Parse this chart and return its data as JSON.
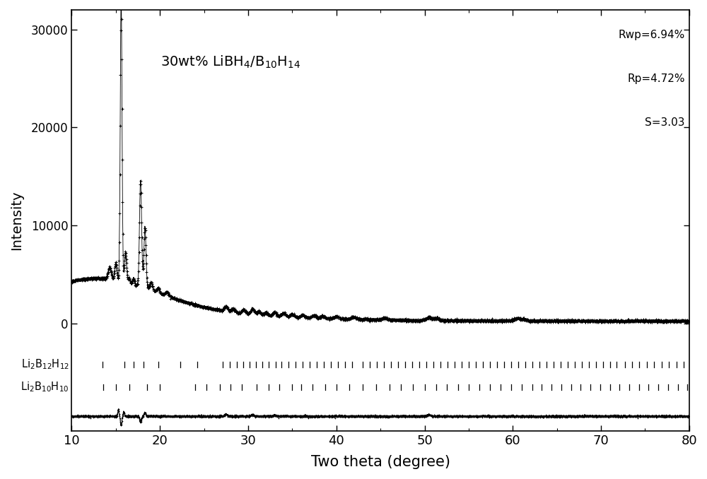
{
  "xlabel": "Two theta (degree)",
  "ylabel": "Intensity",
  "xlim": [
    10,
    80
  ],
  "background_color": "#ffffff",
  "yticks": [
    0,
    10000,
    20000,
    30000
  ],
  "title_text": "30wt% LiBH$_4$/B$_{10}$H$_{14}$",
  "stats_lines": [
    "Rwp=6.94%",
    "Rp=4.72%",
    "S=3.03"
  ],
  "phase1_label": "Li$_2$B$_{12}$H$_{12}$",
  "phase2_label": "Li$_2$B$_{10}$H$_{10}$",
  "phase1_peaks": [
    13.5,
    16.0,
    17.0,
    18.1,
    19.8,
    22.3,
    24.2,
    27.1,
    27.9,
    28.7,
    29.4,
    30.2,
    30.9,
    31.6,
    32.3,
    33.1,
    33.8,
    34.6,
    35.4,
    36.2,
    37.0,
    37.8,
    38.6,
    39.4,
    40.2,
    41.0,
    41.8,
    43.0,
    43.8,
    44.6,
    45.4,
    46.2,
    47.0,
    47.8,
    48.6,
    49.4,
    50.2,
    51.0,
    51.8,
    52.6,
    53.4,
    54.2,
    55.0,
    55.8,
    56.6,
    57.4,
    58.2,
    59.0,
    59.8,
    60.6,
    61.4,
    62.2,
    63.0,
    63.8,
    64.6,
    65.4,
    66.2,
    67.0,
    67.8,
    68.6,
    69.4,
    70.2,
    71.0,
    71.8,
    72.7,
    73.5,
    74.3,
    75.2,
    76.0,
    76.9,
    77.7,
    78.6,
    79.4
  ],
  "phase2_peaks": [
    13.6,
    15.0,
    16.5,
    18.5,
    20.0,
    24.0,
    25.3,
    26.8,
    28.0,
    29.3,
    31.0,
    32.3,
    33.5,
    35.0,
    36.0,
    37.3,
    38.7,
    40.0,
    41.5,
    43.0,
    44.5,
    46.0,
    47.3,
    48.7,
    50.0,
    51.3,
    52.5,
    53.8,
    55.0,
    56.2,
    57.4,
    58.6,
    59.8,
    61.0,
    62.2,
    63.3,
    64.4,
    65.5,
    66.6,
    67.7,
    68.8,
    69.9,
    71.0,
    72.1,
    73.2,
    74.3,
    75.4,
    76.5,
    77.6,
    78.7,
    79.8
  ]
}
